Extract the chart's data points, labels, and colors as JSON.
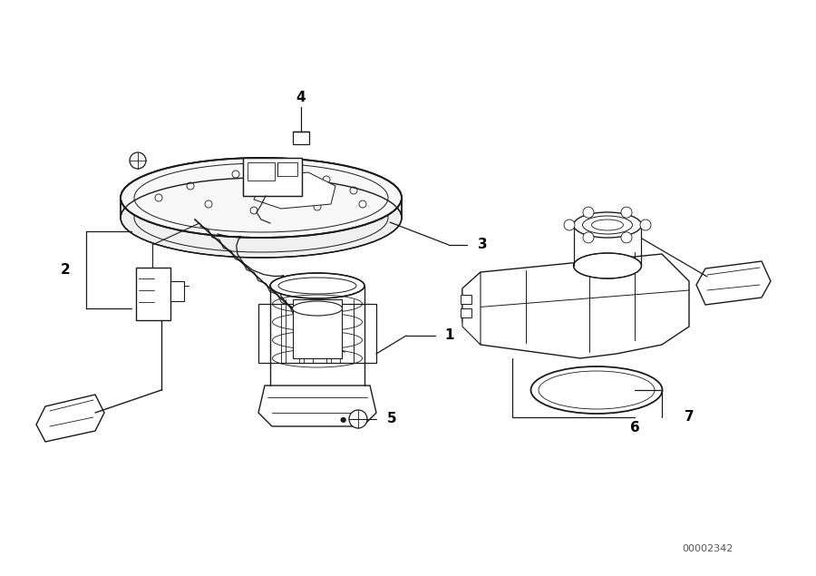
{
  "bg_color": "#ffffff",
  "line_color": "#1a1a1a",
  "diagram_code": "00002342",
  "figsize": [
    9.0,
    6.35
  ],
  "dpi": 100
}
